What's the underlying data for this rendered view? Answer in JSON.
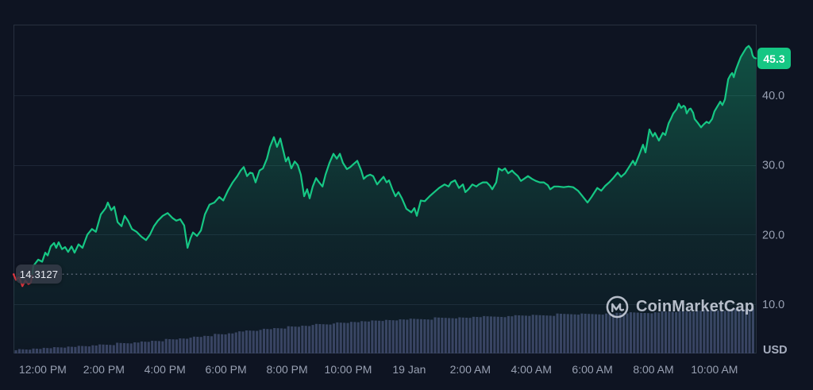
{
  "watermark": {
    "text": "CoinMarketCap"
  },
  "chart_data": {
    "type": "line",
    "currency": "USD",
    "open_price": 14.3127,
    "open_price_label": "14.3127",
    "last_price": 45.3,
    "last_price_label": "45.3",
    "x_axis": {
      "span_hours": 24.34,
      "ticks": [
        {
          "label": "12:00 PM",
          "t": 0.96
        },
        {
          "label": "2:00 PM",
          "t": 2.96
        },
        {
          "label": "4:00 PM",
          "t": 4.96
        },
        {
          "label": "6:00 PM",
          "t": 6.96
        },
        {
          "label": "8:00 PM",
          "t": 8.96
        },
        {
          "label": "10:00 PM",
          "t": 10.96
        },
        {
          "label": "19 Jan",
          "t": 12.96
        },
        {
          "label": "2:00 AM",
          "t": 14.96
        },
        {
          "label": "4:00 AM",
          "t": 16.96
        },
        {
          "label": "6:00 AM",
          "t": 18.96
        },
        {
          "label": "8:00 AM",
          "t": 20.96
        },
        {
          "label": "10:00 AM",
          "t": 22.96
        }
      ]
    },
    "y_axis": {
      "unit": "USD",
      "range": [
        2.9,
        50.2
      ],
      "ticks": [
        {
          "label": "40.0",
          "value": 40
        },
        {
          "label": "30.0",
          "value": 30
        },
        {
          "label": "20.0",
          "value": 20
        },
        {
          "label": "10.0",
          "value": 10
        }
      ]
    },
    "colors": {
      "up": "#16c784",
      "down": "#ea3943",
      "volume": "#3a4162",
      "grid": "#1d2636",
      "frame": "#27303f",
      "bg": "#0e1422",
      "label": "#98a0b2",
      "dotted": "#5a6375"
    },
    "down_segment_end_hours": 0.64,
    "series": [
      {
        "name": "price",
        "points": [
          [
            0.0,
            14.31
          ],
          [
            0.08,
            13.5
          ],
          [
            0.18,
            13.9
          ],
          [
            0.29,
            12.6
          ],
          [
            0.39,
            13.4
          ],
          [
            0.49,
            12.9
          ],
          [
            0.57,
            13.1
          ],
          [
            0.62,
            14.3
          ],
          [
            0.65,
            15.5
          ],
          [
            0.81,
            16.4
          ],
          [
            0.94,
            16.1
          ],
          [
            1.04,
            17.4
          ],
          [
            1.12,
            17.0
          ],
          [
            1.22,
            18.3
          ],
          [
            1.33,
            18.8
          ],
          [
            1.4,
            18.1
          ],
          [
            1.48,
            18.9
          ],
          [
            1.59,
            17.9
          ],
          [
            1.69,
            18.2
          ],
          [
            1.79,
            17.5
          ],
          [
            1.9,
            18.3
          ],
          [
            2.0,
            17.4
          ],
          [
            2.13,
            18.6
          ],
          [
            2.26,
            18.1
          ],
          [
            2.42,
            20.0
          ],
          [
            2.57,
            20.8
          ],
          [
            2.7,
            20.4
          ],
          [
            2.86,
            22.9
          ],
          [
            3.02,
            23.8
          ],
          [
            3.09,
            24.6
          ],
          [
            3.2,
            23.5
          ],
          [
            3.3,
            24.0
          ],
          [
            3.41,
            21.8
          ],
          [
            3.54,
            21.2
          ],
          [
            3.64,
            22.7
          ],
          [
            3.75,
            22.0
          ],
          [
            3.88,
            20.8
          ],
          [
            4.03,
            20.4
          ],
          [
            4.19,
            19.7
          ],
          [
            4.34,
            19.2
          ],
          [
            4.47,
            20.0
          ],
          [
            4.6,
            21.2
          ],
          [
            4.73,
            22.0
          ],
          [
            4.89,
            22.7
          ],
          [
            5.05,
            23.1
          ],
          [
            5.2,
            22.4
          ],
          [
            5.33,
            22.0
          ],
          [
            5.46,
            22.2
          ],
          [
            5.59,
            21.3
          ],
          [
            5.7,
            18.1
          ],
          [
            5.8,
            19.5
          ],
          [
            5.88,
            20.3
          ],
          [
            6.01,
            19.8
          ],
          [
            6.14,
            20.6
          ],
          [
            6.27,
            22.9
          ],
          [
            6.42,
            24.3
          ],
          [
            6.58,
            24.6
          ],
          [
            6.74,
            25.4
          ],
          [
            6.87,
            24.9
          ],
          [
            7.02,
            26.3
          ],
          [
            7.18,
            27.5
          ],
          [
            7.33,
            28.4
          ],
          [
            7.44,
            29.2
          ],
          [
            7.54,
            29.7
          ],
          [
            7.65,
            28.4
          ],
          [
            7.75,
            28.9
          ],
          [
            7.83,
            28.8
          ],
          [
            7.93,
            27.5
          ],
          [
            8.06,
            29.2
          ],
          [
            8.17,
            29.5
          ],
          [
            8.3,
            30.9
          ],
          [
            8.4,
            32.6
          ],
          [
            8.53,
            34.0
          ],
          [
            8.63,
            32.6
          ],
          [
            8.74,
            33.8
          ],
          [
            8.84,
            32.0
          ],
          [
            8.92,
            30.5
          ],
          [
            9.0,
            31.1
          ],
          [
            9.1,
            29.5
          ],
          [
            9.21,
            30.5
          ],
          [
            9.31,
            30.0
          ],
          [
            9.41,
            28.6
          ],
          [
            9.52,
            25.5
          ],
          [
            9.62,
            26.5
          ],
          [
            9.7,
            25.2
          ],
          [
            9.8,
            26.9
          ],
          [
            9.91,
            28.1
          ],
          [
            10.01,
            27.5
          ],
          [
            10.12,
            26.9
          ],
          [
            10.22,
            28.6
          ],
          [
            10.35,
            30.3
          ],
          [
            10.48,
            31.6
          ],
          [
            10.59,
            30.9
          ],
          [
            10.69,
            31.6
          ],
          [
            10.79,
            30.3
          ],
          [
            10.92,
            29.4
          ],
          [
            11.03,
            29.7
          ],
          [
            11.13,
            30.1
          ],
          [
            11.26,
            30.6
          ],
          [
            11.39,
            29.2
          ],
          [
            11.47,
            28.0
          ],
          [
            11.57,
            28.4
          ],
          [
            11.68,
            28.6
          ],
          [
            11.78,
            28.4
          ],
          [
            11.91,
            27.2
          ],
          [
            12.02,
            27.8
          ],
          [
            12.12,
            28.3
          ],
          [
            12.22,
            27.5
          ],
          [
            12.3,
            27.8
          ],
          [
            12.41,
            26.5
          ],
          [
            12.51,
            25.5
          ],
          [
            12.61,
            26.1
          ],
          [
            12.72,
            25.2
          ],
          [
            12.87,
            23.7
          ],
          [
            13.03,
            23.2
          ],
          [
            13.13,
            23.8
          ],
          [
            13.21,
            22.7
          ],
          [
            13.34,
            24.9
          ],
          [
            13.47,
            24.8
          ],
          [
            13.63,
            25.5
          ],
          [
            13.78,
            26.1
          ],
          [
            13.94,
            26.7
          ],
          [
            14.12,
            27.2
          ],
          [
            14.25,
            26.9
          ],
          [
            14.33,
            27.5
          ],
          [
            14.46,
            27.8
          ],
          [
            14.59,
            26.7
          ],
          [
            14.72,
            27.2
          ],
          [
            14.8,
            26.1
          ],
          [
            14.9,
            26.5
          ],
          [
            15.03,
            27.2
          ],
          [
            15.16,
            26.9
          ],
          [
            15.24,
            27.2
          ],
          [
            15.37,
            27.5
          ],
          [
            15.5,
            27.5
          ],
          [
            15.61,
            27.0
          ],
          [
            15.68,
            26.5
          ],
          [
            15.81,
            27.5
          ],
          [
            15.89,
            29.5
          ],
          [
            16.0,
            29.2
          ],
          [
            16.1,
            29.5
          ],
          [
            16.2,
            28.8
          ],
          [
            16.33,
            29.2
          ],
          [
            16.39,
            28.9
          ],
          [
            16.52,
            28.4
          ],
          [
            16.62,
            27.7
          ],
          [
            16.72,
            28.0
          ],
          [
            16.85,
            28.4
          ],
          [
            16.98,
            28.0
          ],
          [
            17.11,
            27.7
          ],
          [
            17.24,
            27.5
          ],
          [
            17.37,
            27.5
          ],
          [
            17.5,
            27.1
          ],
          [
            17.58,
            26.5
          ],
          [
            17.71,
            26.9
          ],
          [
            17.84,
            26.9
          ],
          [
            18.02,
            26.8
          ],
          [
            18.18,
            26.9
          ],
          [
            18.33,
            26.8
          ],
          [
            18.49,
            26.3
          ],
          [
            18.62,
            25.6
          ],
          [
            18.8,
            24.6
          ],
          [
            18.93,
            25.4
          ],
          [
            19.12,
            26.7
          ],
          [
            19.25,
            26.3
          ],
          [
            19.38,
            27.0
          ],
          [
            19.51,
            27.5
          ],
          [
            19.64,
            28.1
          ],
          [
            19.79,
            28.9
          ],
          [
            19.9,
            28.3
          ],
          [
            20.03,
            28.8
          ],
          [
            20.16,
            29.7
          ],
          [
            20.29,
            30.6
          ],
          [
            20.36,
            30.0
          ],
          [
            20.49,
            31.4
          ],
          [
            20.62,
            32.9
          ],
          [
            20.7,
            31.8
          ],
          [
            20.83,
            35.1
          ],
          [
            20.94,
            34.1
          ],
          [
            21.01,
            34.6
          ],
          [
            21.14,
            33.5
          ],
          [
            21.27,
            34.6
          ],
          [
            21.35,
            34.3
          ],
          [
            21.46,
            36.0
          ],
          [
            21.53,
            36.6
          ],
          [
            21.61,
            37.4
          ],
          [
            21.72,
            38.0
          ],
          [
            21.79,
            38.8
          ],
          [
            21.87,
            38.2
          ],
          [
            21.95,
            38.5
          ],
          [
            22.0,
            38.3
          ],
          [
            22.05,
            37.4
          ],
          [
            22.13,
            38.0
          ],
          [
            22.18,
            38.1
          ],
          [
            22.26,
            37.5
          ],
          [
            22.31,
            36.6
          ],
          [
            22.42,
            36.0
          ],
          [
            22.52,
            35.4
          ],
          [
            22.6,
            35.8
          ],
          [
            22.7,
            36.2
          ],
          [
            22.78,
            36.0
          ],
          [
            22.88,
            36.6
          ],
          [
            22.96,
            37.7
          ],
          [
            23.04,
            38.3
          ],
          [
            23.15,
            39.1
          ],
          [
            23.22,
            38.6
          ],
          [
            23.3,
            39.4
          ],
          [
            23.41,
            42.3
          ],
          [
            23.48,
            42.9
          ],
          [
            23.54,
            43.2
          ],
          [
            23.59,
            42.6
          ],
          [
            23.66,
            43.7
          ],
          [
            23.74,
            44.6
          ],
          [
            23.82,
            45.5
          ],
          [
            23.93,
            46.3
          ],
          [
            24.0,
            46.8
          ],
          [
            24.08,
            47.1
          ],
          [
            24.16,
            46.6
          ],
          [
            24.21,
            45.7
          ],
          [
            24.26,
            45.4
          ],
          [
            24.32,
            45.3
          ]
        ]
      },
      {
        "name": "volume",
        "normalized_samples": [
          [
            0,
            0.08
          ],
          [
            1,
            0.115
          ],
          [
            2,
            0.155
          ],
          [
            3,
            0.195
          ],
          [
            4,
            0.245
          ],
          [
            5,
            0.3
          ],
          [
            6,
            0.365
          ],
          [
            7,
            0.44
          ],
          [
            7.4,
            0.48
          ],
          [
            8,
            0.52
          ],
          [
            9,
            0.585
          ],
          [
            10,
            0.64
          ],
          [
            10.5,
            0.665
          ],
          [
            11,
            0.69
          ],
          [
            12,
            0.73
          ],
          [
            13,
            0.755
          ],
          [
            14,
            0.78
          ],
          [
            15,
            0.8
          ],
          [
            16,
            0.82
          ],
          [
            17,
            0.845
          ],
          [
            18,
            0.86
          ],
          [
            19,
            0.875
          ],
          [
            20,
            0.89
          ],
          [
            21,
            0.91
          ],
          [
            22,
            0.93
          ],
          [
            23,
            0.96
          ],
          [
            23.7,
            0.975
          ],
          [
            24.32,
            1.0
          ]
        ]
      }
    ]
  }
}
